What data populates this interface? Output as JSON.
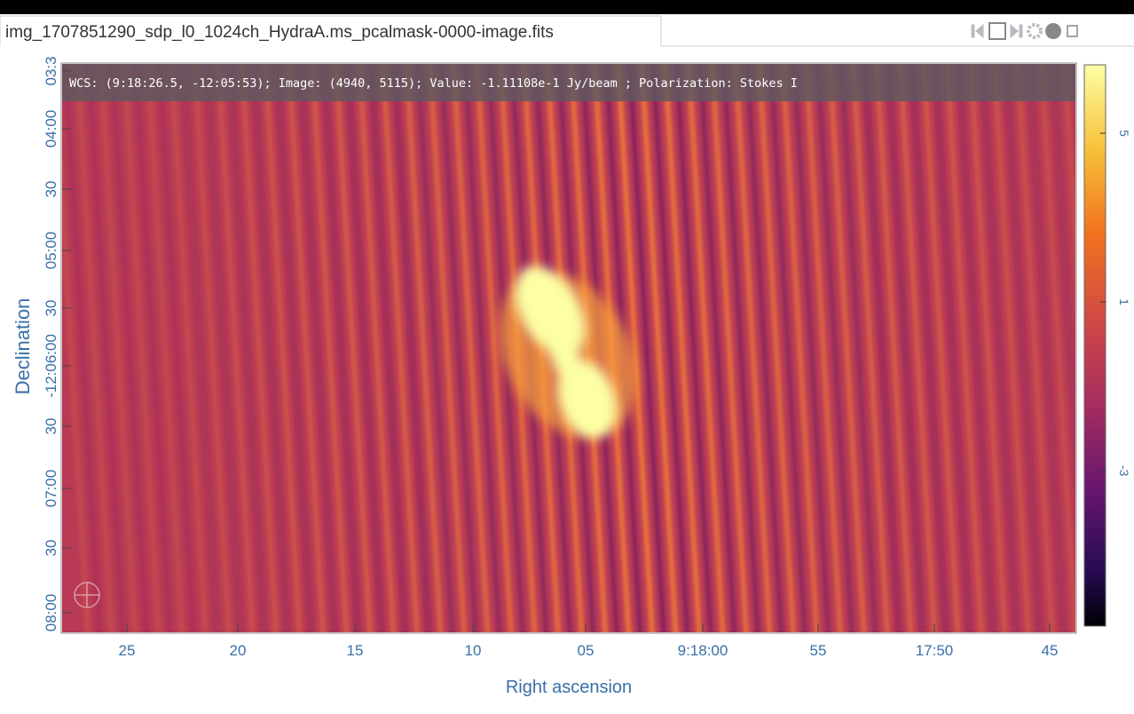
{
  "tab": {
    "title": "img_1707851290_sdp_l0_1024ch_HydraA.ms_pcalmask-0000-image.fits"
  },
  "cursor_info": "WCS: (9:18:26.5, -12:05:53); Image: (4940, 5115); Value: -1.11108e-1 Jy/beam ; Polarization: Stokes I",
  "axes": {
    "x_label": "Right ascension",
    "y_label": "Declination",
    "x_ticks": [
      "25",
      "20",
      "15",
      "10",
      "05",
      "9:18:00",
      "55",
      "17:50",
      "45"
    ],
    "y_ticks": [
      "03:3",
      "04:00",
      "30",
      "05:00",
      "30",
      "-12:06:00",
      "30",
      "07:00",
      "30",
      "08:00"
    ]
  },
  "colorbar": {
    "ticks": [
      "5",
      "1",
      "-3"
    ]
  }
}
